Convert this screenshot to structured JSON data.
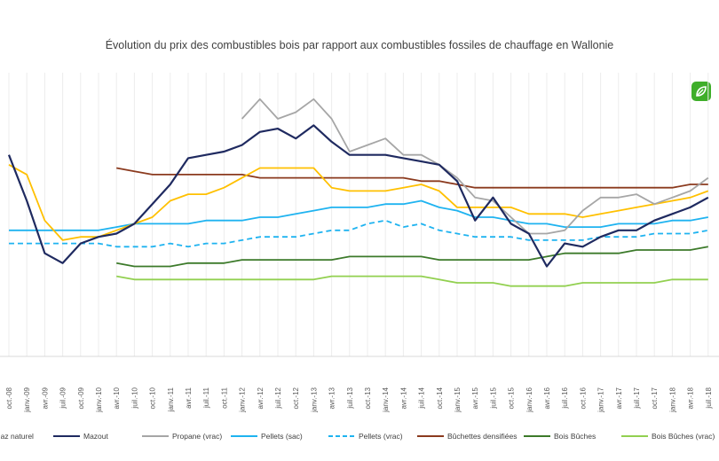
{
  "chart_data": {
    "type": "line",
    "title": "Évolution du prix des combustibles bois par rapport aux combustibles fossiles de chauffage en Wallonie",
    "x_labels": [
      "oct.-08",
      "janv.-09",
      "avr.-09",
      "juil.-09",
      "oct.-09",
      "janv.-10",
      "avr.-10",
      "juil.-10",
      "oct.-10",
      "janv.-11",
      "avr.-11",
      "juil.-11",
      "oct.-11",
      "janv.-12",
      "avr.-12",
      "juil.-12",
      "oct.-12",
      "janv.-13",
      "avr.-13",
      "juil.-13",
      "oct.-13",
      "janv.-14",
      "avr.-14",
      "juil.-14",
      "oct.-14",
      "janv.-15",
      "avr.-15",
      "juil.-15",
      "oct.-15",
      "janv.-16",
      "avr.-16",
      "juil.-16",
      "oct.-16",
      "janv.-17",
      "avr.-17",
      "juil.-17",
      "oct.-17",
      "janv.-18",
      "avr.-18",
      "juil.-18"
    ],
    "grid": "vertical",
    "legend_position": "bottom",
    "series": [
      {
        "name": "Gaz naturel",
        "color": "#ffc000",
        "dash": false,
        "values": [
          6.6,
          6.3,
          4.9,
          4.3,
          4.4,
          4.4,
          4.6,
          4.8,
          5.0,
          5.5,
          5.7,
          5.7,
          5.9,
          6.2,
          6.5,
          6.5,
          6.5,
          6.5,
          5.9,
          5.8,
          5.8,
          5.8,
          5.9,
          6.0,
          5.8,
          5.3,
          5.3,
          5.3,
          5.3,
          5.1,
          5.1,
          5.1,
          5.0,
          5.1,
          5.2,
          5.3,
          5.4,
          5.5,
          5.6,
          5.8
        ]
      },
      {
        "name": "Mazout",
        "color": "#1f2a60",
        "dash": false,
        "values": [
          6.9,
          5.5,
          3.9,
          3.6,
          4.2,
          4.4,
          4.5,
          4.8,
          5.4,
          6.0,
          6.8,
          6.9,
          7.0,
          7.2,
          7.6,
          7.7,
          7.4,
          7.8,
          7.3,
          6.9,
          6.9,
          6.9,
          6.8,
          6.7,
          6.6,
          6.1,
          4.9,
          5.6,
          4.8,
          4.5,
          3.5,
          4.2,
          4.1,
          4.4,
          4.6,
          4.6,
          4.9,
          5.1,
          5.3,
          5.6
        ]
      },
      {
        "name": "Propane (vrac)",
        "color": "#a6a6a6",
        "dash": false,
        "values": [
          null,
          null,
          null,
          null,
          null,
          null,
          null,
          null,
          null,
          null,
          null,
          null,
          null,
          8.0,
          8.6,
          8.0,
          8.2,
          8.6,
          8.0,
          7.0,
          7.2,
          7.4,
          6.9,
          6.9,
          6.6,
          6.2,
          5.6,
          5.5,
          5.0,
          4.5,
          4.5,
          4.6,
          5.2,
          5.6,
          5.6,
          5.7,
          5.4,
          5.6,
          5.8,
          6.2
        ]
      },
      {
        "name": "Pellets (sac)",
        "color": "#1fb3f0",
        "dash": false,
        "values": [
          4.6,
          4.6,
          4.6,
          4.6,
          4.6,
          4.6,
          4.7,
          4.8,
          4.8,
          4.8,
          4.8,
          4.9,
          4.9,
          4.9,
          5.0,
          5.0,
          5.1,
          5.2,
          5.3,
          5.3,
          5.3,
          5.4,
          5.4,
          5.5,
          5.3,
          5.2,
          5.0,
          5.0,
          4.9,
          4.8,
          4.8,
          4.7,
          4.7,
          4.7,
          4.8,
          4.8,
          4.8,
          4.9,
          4.9,
          5.0
        ]
      },
      {
        "name": "Pellets (vrac)",
        "color": "#1fb3f0",
        "dash": true,
        "values": [
          4.2,
          4.2,
          4.2,
          4.2,
          4.2,
          4.2,
          4.1,
          4.1,
          4.1,
          4.2,
          4.1,
          4.2,
          4.2,
          4.3,
          4.4,
          4.4,
          4.4,
          4.5,
          4.6,
          4.6,
          4.8,
          4.9,
          4.7,
          4.8,
          4.6,
          4.5,
          4.4,
          4.4,
          4.4,
          4.3,
          4.3,
          4.3,
          4.3,
          4.4,
          4.4,
          4.4,
          4.5,
          4.5,
          4.5,
          4.6
        ]
      },
      {
        "name": "Bûchettes densifiées",
        "color": "#8b3a1e",
        "dash": false,
        "values": [
          null,
          null,
          null,
          null,
          null,
          null,
          6.5,
          6.4,
          6.3,
          6.3,
          6.3,
          6.3,
          6.3,
          6.3,
          6.2,
          6.2,
          6.2,
          6.2,
          6.2,
          6.2,
          6.2,
          6.2,
          6.2,
          6.1,
          6.1,
          6.0,
          5.9,
          5.9,
          5.9,
          5.9,
          5.9,
          5.9,
          5.9,
          5.9,
          5.9,
          5.9,
          5.9,
          5.9,
          6.0,
          6.0
        ]
      },
      {
        "name": "Bois Bûches",
        "color": "#3c7a2a",
        "dash": false,
        "values": [
          null,
          null,
          null,
          null,
          null,
          null,
          3.6,
          3.5,
          3.5,
          3.5,
          3.6,
          3.6,
          3.6,
          3.7,
          3.7,
          3.7,
          3.7,
          3.7,
          3.7,
          3.8,
          3.8,
          3.8,
          3.8,
          3.8,
          3.7,
          3.7,
          3.7,
          3.7,
          3.7,
          3.7,
          3.8,
          3.9,
          3.9,
          3.9,
          3.9,
          4.0,
          4.0,
          4.0,
          4.0,
          4.1
        ]
      },
      {
        "name": "Bois Bûches (vrac)",
        "color": "#92d050",
        "dash": false,
        "values": [
          null,
          null,
          null,
          null,
          null,
          null,
          3.2,
          3.1,
          3.1,
          3.1,
          3.1,
          3.1,
          3.1,
          3.1,
          3.1,
          3.1,
          3.1,
          3.1,
          3.2,
          3.2,
          3.2,
          3.2,
          3.2,
          3.2,
          3.1,
          3.0,
          3.0,
          3.0,
          2.9,
          2.9,
          2.9,
          2.9,
          3.0,
          3.0,
          3.0,
          3.0,
          3.0,
          3.1,
          3.1,
          3.1
        ]
      }
    ],
    "legend": [
      "Gaz naturel",
      "Mazout",
      "Propane (vrac)",
      "Pellets (sac)",
      "Pellets (vrac)",
      "Bûchettes densifiées",
      "Bois Bûches",
      "Bois Bûches (vrac)"
    ]
  }
}
